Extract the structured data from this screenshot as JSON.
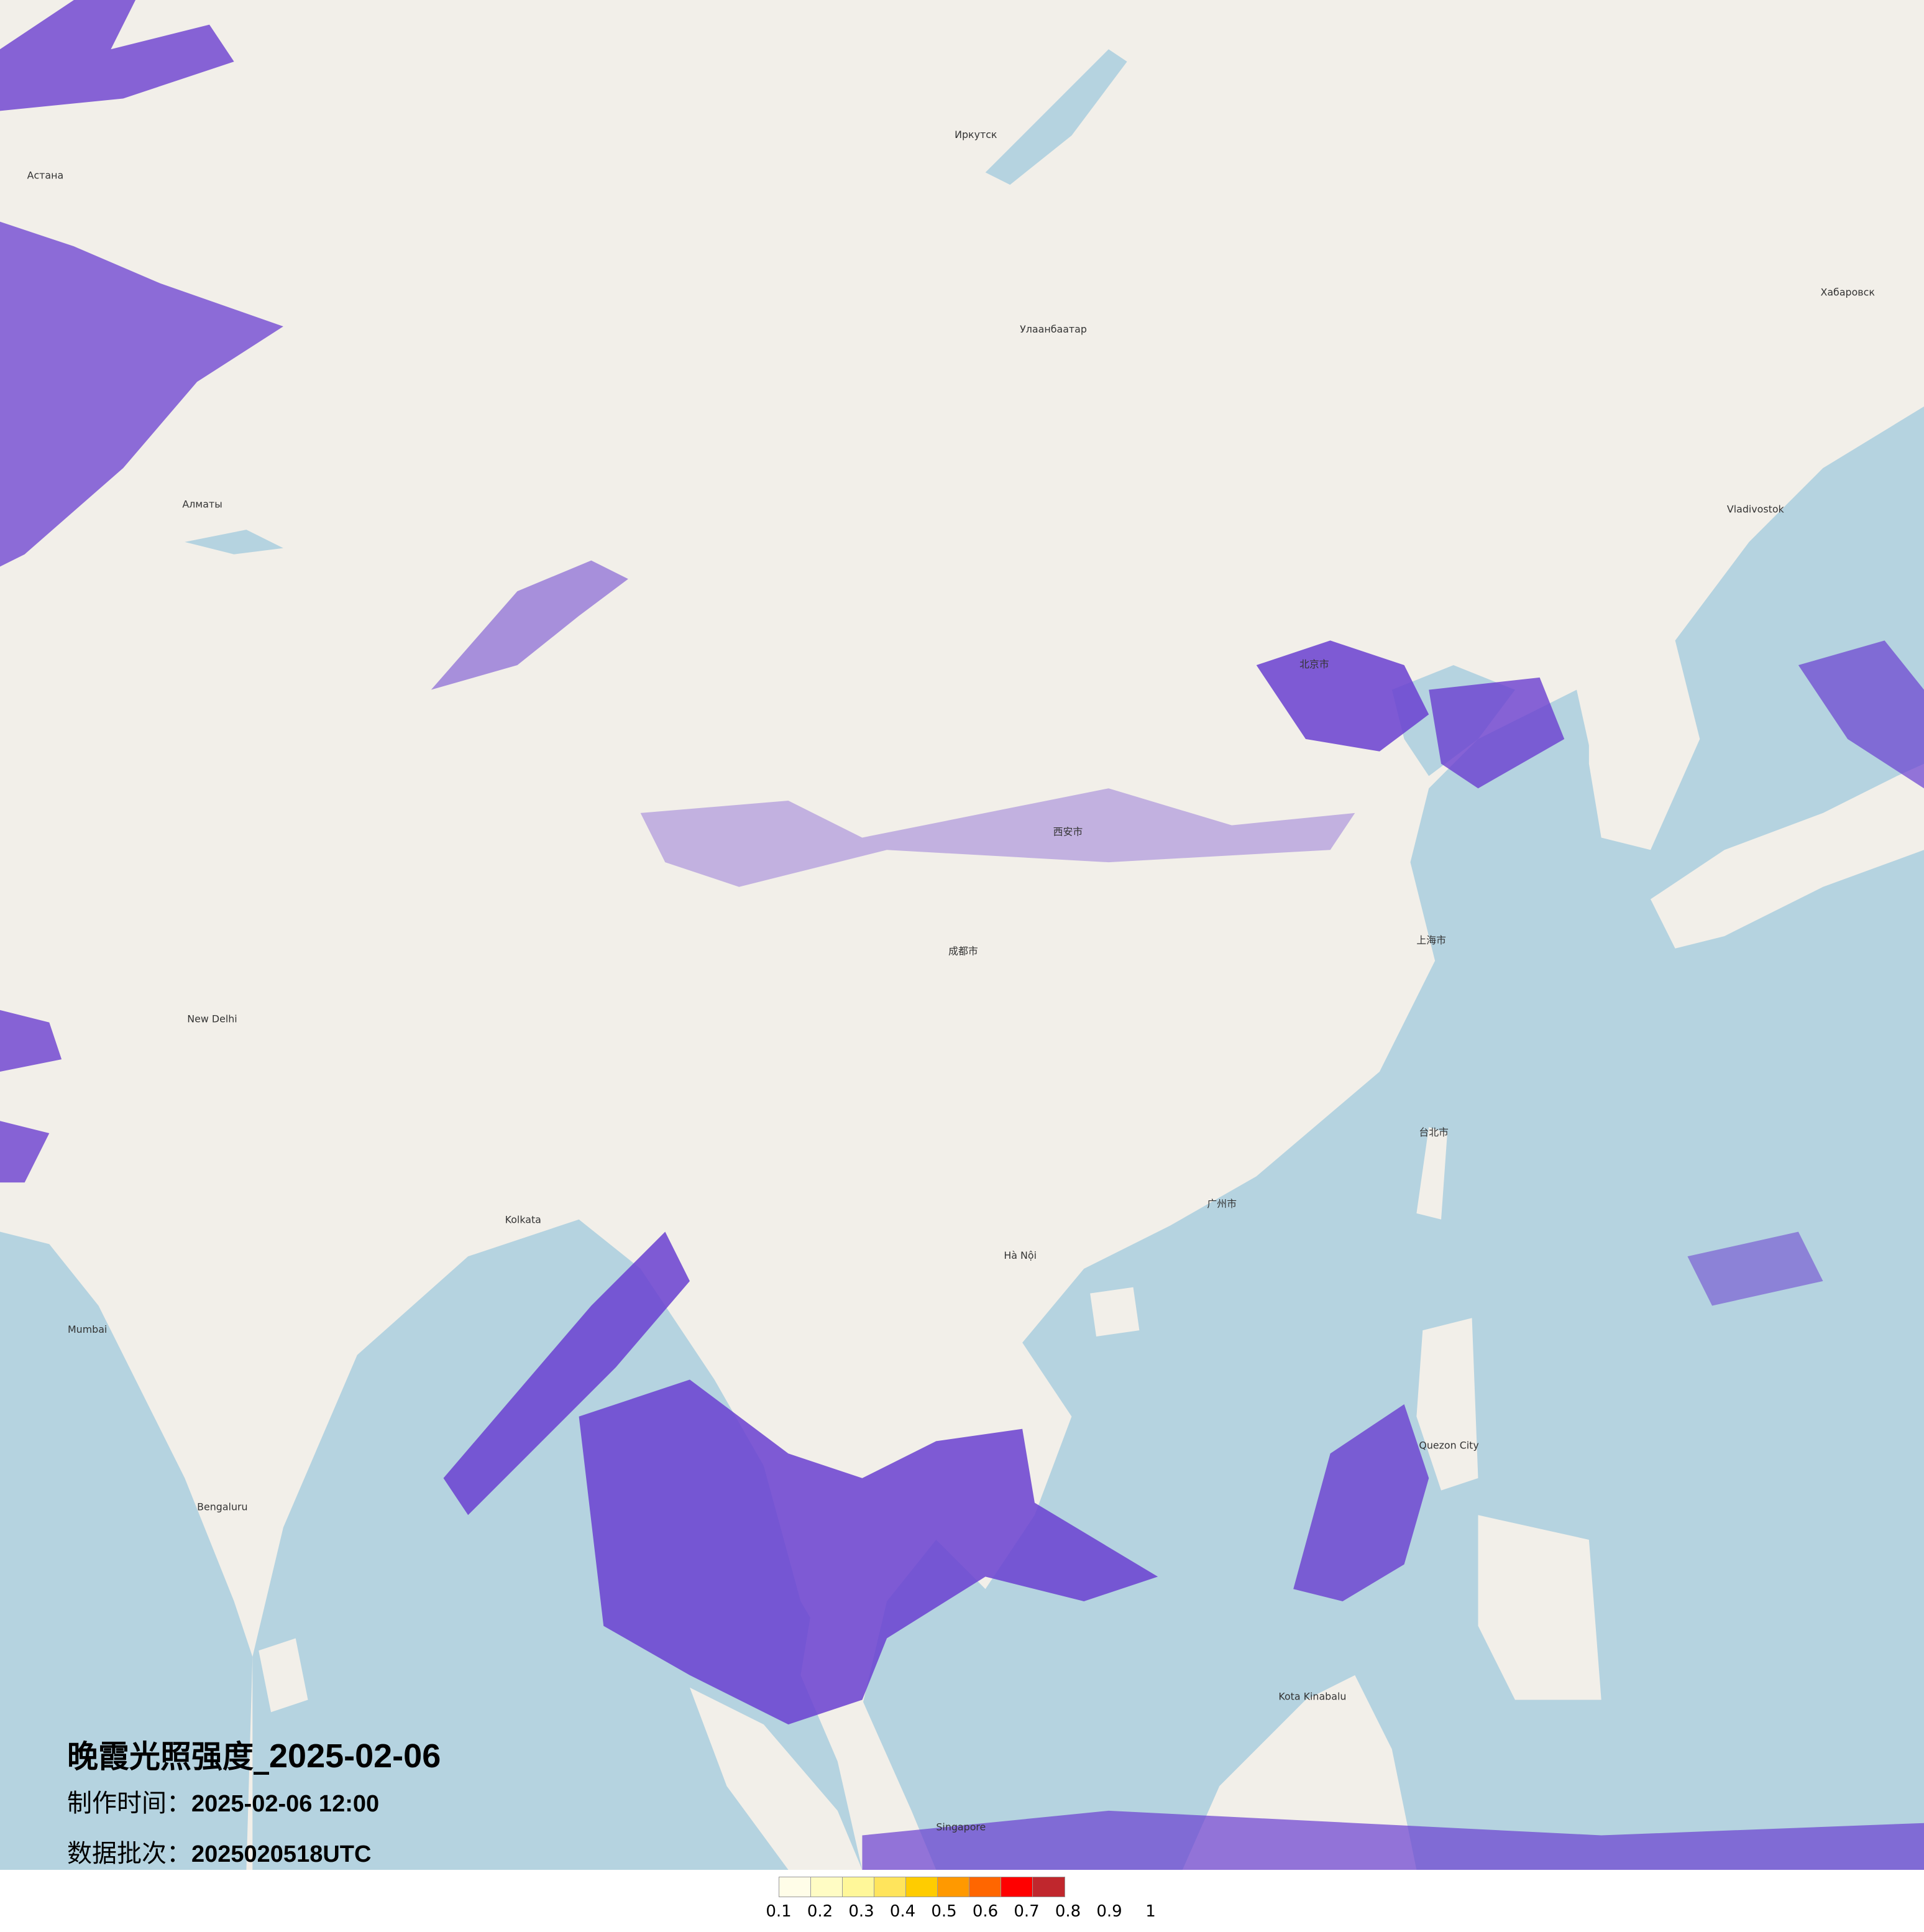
{
  "title": {
    "main": "晚霞光照强度_",
    "date": "2025-02-06",
    "made_label": "制作时间：",
    "made_value": "2025-02-06 12:00",
    "batch_label": "数据批次：",
    "batch_value": "2025020518UTC"
  },
  "legend": {
    "colors": [
      "#fffde8",
      "#fffcc4",
      "#fff799",
      "#ffe45c",
      "#ffcc00",
      "#ff9900",
      "#ff6600",
      "#ff0000",
      "#c0272d"
    ],
    "ticks": [
      "0.1",
      "0.2",
      "0.3",
      "0.4",
      "0.5",
      "0.6",
      "0.7",
      "0.8",
      "0.9",
      "1"
    ]
  },
  "map": {
    "land_color": "#f2efe9",
    "sea_color": "#b5d3e0",
    "overlay_color": "#6a3fd0",
    "cities": [
      {
        "name": "Улаанбаатар"
      },
      {
        "name": "Иркутск"
      },
      {
        "name": "Алматы"
      },
      {
        "name": "Астана"
      },
      {
        "name": "Хабаровск"
      },
      {
        "name": "Vladivostok"
      },
      {
        "name": "New Delhi"
      },
      {
        "name": "Kolkata"
      },
      {
        "name": "Mumbai"
      },
      {
        "name": "Bengaluru"
      },
      {
        "name": "Hà Nội"
      },
      {
        "name": "Quezon City"
      },
      {
        "name": "Kota Kinabalu"
      },
      {
        "name": "Singapore"
      },
      {
        "name": "台北市"
      },
      {
        "name": "北京市"
      },
      {
        "name": "上海市"
      },
      {
        "name": "广州市"
      },
      {
        "name": "成都市"
      },
      {
        "name": "西安市"
      }
    ]
  }
}
